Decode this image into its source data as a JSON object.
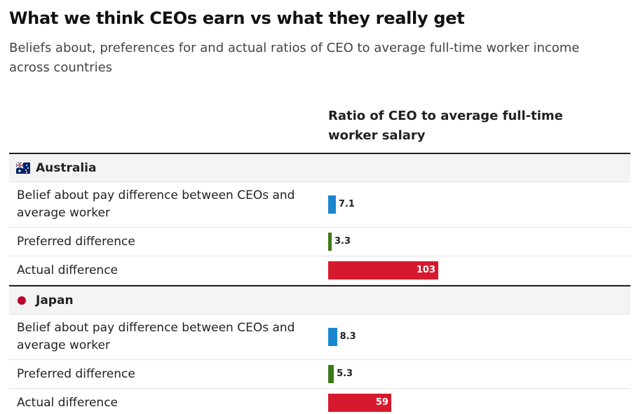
{
  "chart_data": {
    "type": "bar",
    "title": "What we think CEOs earn vs what they really get",
    "subtitle": "Beliefs about, preferences for and actual ratios of CEO to average full-time worker income across countries",
    "column_header": "Ratio of CEO to average full-time worker salary",
    "groups": [
      {
        "name": "Australia",
        "categories": [
          "Belief about pay difference between CEOs and average worker",
          "Preferred difference",
          "Actual difference"
        ],
        "values": [
          7.1,
          3.3,
          103
        ],
        "colors": [
          "#1a86d0",
          "#3b7a17",
          "#d7192d"
        ]
      },
      {
        "name": "Japan",
        "categories": [
          "Belief about pay difference between CEOs and average worker",
          "Preferred difference",
          "Actual difference"
        ],
        "values": [
          8.3,
          5.3,
          59
        ],
        "colors": [
          "#1a86d0",
          "#3b7a17",
          "#d7192d"
        ]
      }
    ]
  }
}
